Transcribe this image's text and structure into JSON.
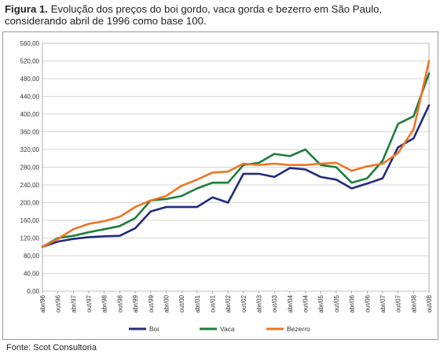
{
  "caption": {
    "label": "Figura 1.",
    "text": "Evolução dos preços do boi gordo, vaca gorda e bezerro em São Paulo, considerando abril de 1996 como base 100."
  },
  "source": "Fonte: Scot Consultoria",
  "chart_data": {
    "type": "line",
    "title": "",
    "xlabel": "",
    "ylabel": "",
    "ylim": [
      0,
      560
    ],
    "yticks": [
      "0,00",
      "40,00",
      "80,00",
      "120,00",
      "160,00",
      "200,00",
      "240,00",
      "280,00",
      "320,00",
      "360,00",
      "400,00",
      "440,00",
      "480,00",
      "520,00",
      "560,00"
    ],
    "x": [
      "abr/96",
      "out/96",
      "abr/97",
      "out/97",
      "abr/98",
      "out/98",
      "abr/99",
      "out/99",
      "abr/00",
      "out/00",
      "abr/01",
      "out/01",
      "abr/02",
      "out/02",
      "abr/03",
      "out/03",
      "abr/04",
      "out/04",
      "abr/05",
      "out/05",
      "abr/06",
      "out/06",
      "abr/07",
      "out/07",
      "abr/08",
      "out/08"
    ],
    "grid": true,
    "legend": "bottom",
    "series": [
      {
        "name": "Boi",
        "color": "#232a7c",
        "values": [
          100,
          112,
          118,
          122,
          124,
          125,
          142,
          180,
          190,
          190,
          190,
          212,
          200,
          265,
          265,
          258,
          278,
          275,
          258,
          252,
          232,
          243,
          255,
          325,
          345,
          420
        ]
      },
      {
        "name": "Vaca",
        "color": "#1e7d3a",
        "values": [
          100,
          120,
          125,
          133,
          140,
          147,
          165,
          205,
          208,
          215,
          232,
          245,
          245,
          285,
          290,
          310,
          305,
          320,
          285,
          280,
          245,
          255,
          295,
          378,
          395,
          492
        ]
      },
      {
        "name": "Bezerro",
        "color": "#ef7422",
        "values": [
          100,
          118,
          140,
          152,
          158,
          168,
          190,
          205,
          215,
          238,
          252,
          268,
          270,
          288,
          285,
          288,
          285,
          285,
          288,
          290,
          272,
          282,
          288,
          312,
          365,
          520
        ]
      }
    ]
  }
}
